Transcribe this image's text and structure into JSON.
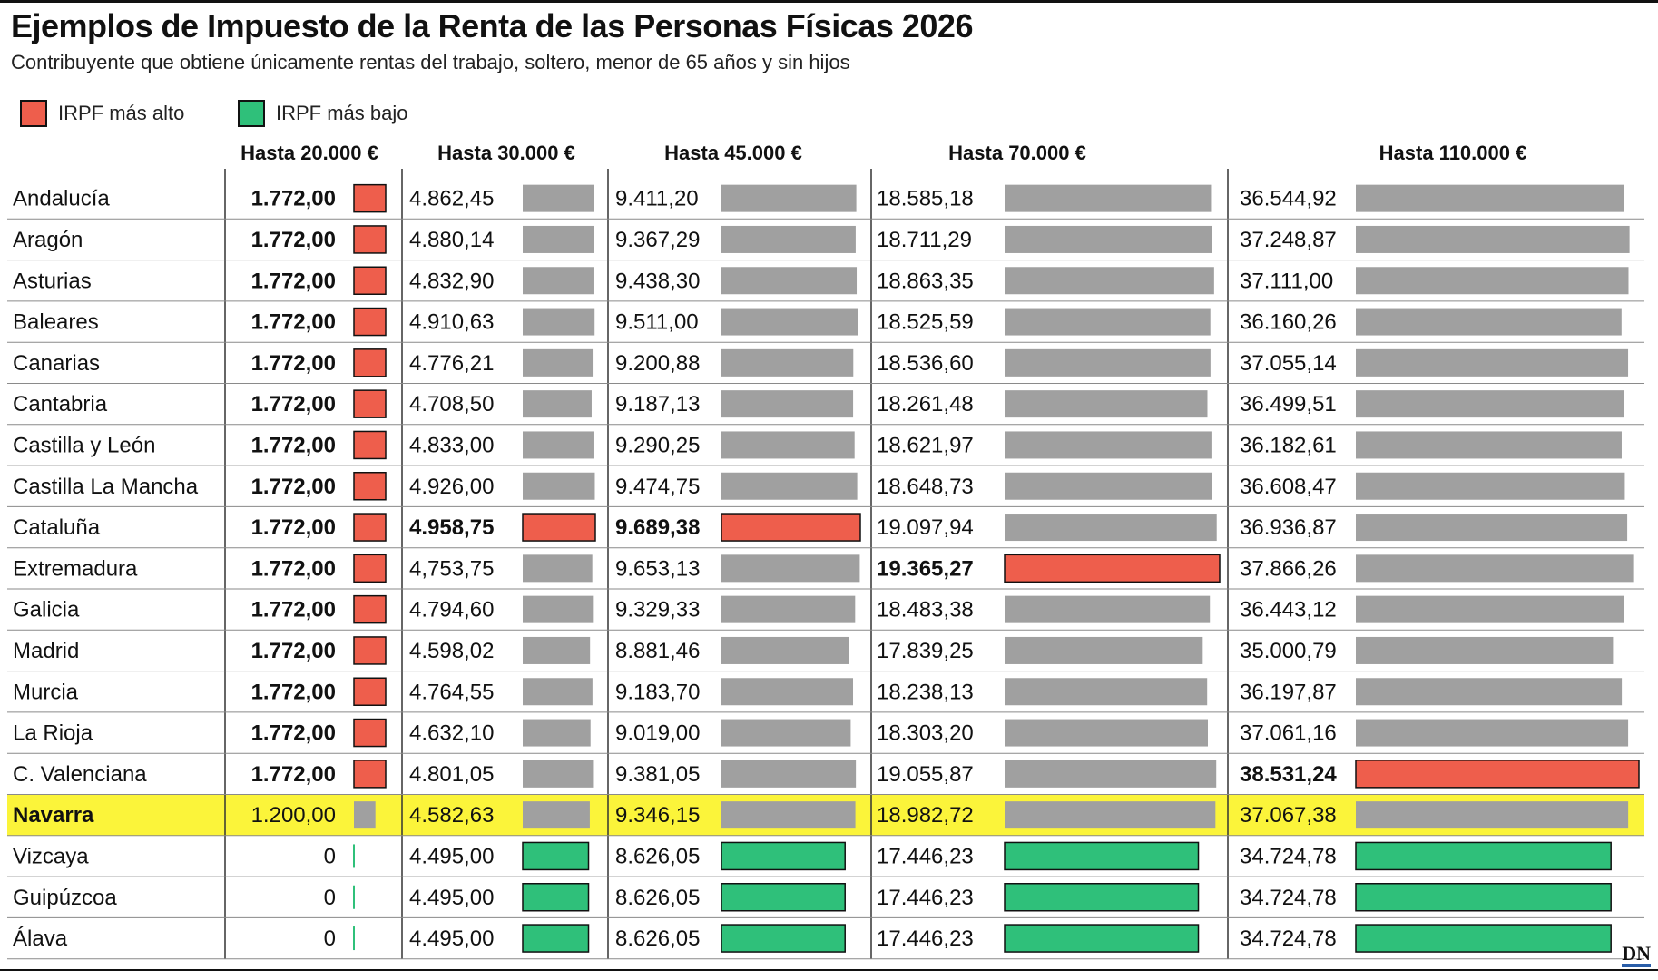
{
  "title": "Ejemplos de Impuesto de la Renta de las Personas Físicas 2026",
  "subtitle": "Contribuyente que obtiene únicamente rentas del trabajo, soltero, menor de 65 años y sin hijos",
  "legend": [
    {
      "label": "IRPF más alto",
      "color": "#ee5e4c"
    },
    {
      "label": "IRPF más bajo",
      "color": "#2fc07a"
    }
  ],
  "brand": "DN",
  "colors": {
    "high": "#ee5e4c",
    "low": "#2fc07a",
    "neutral": "#a0a0a0",
    "highlight_row": "#fbf43a"
  },
  "chart_data": {
    "type": "table",
    "columns": [
      "Hasta 20.000 €",
      "Hasta 30.000 €",
      "Hasta 45.000 €",
      "Hasta 70.000 €",
      "Hasta 110.000 €"
    ],
    "highlight_row": "Navarra",
    "rows": [
      {
        "region": "Andalucía",
        "values": [
          "1.772,00",
          "4.862,45",
          "9.411,20",
          "18.585,18",
          "36.544,92"
        ],
        "status": [
          "high",
          "neutral",
          "neutral",
          "neutral",
          "neutral"
        ]
      },
      {
        "region": "Aragón",
        "values": [
          "1.772,00",
          "4.880,14",
          "9.367,29",
          "18.711,29",
          "37.248,87"
        ],
        "status": [
          "high",
          "neutral",
          "neutral",
          "neutral",
          "neutral"
        ]
      },
      {
        "region": "Asturias",
        "values": [
          "1.772,00",
          "4.832,90",
          "9.438,30",
          "18.863,35",
          "37.111,00"
        ],
        "status": [
          "high",
          "neutral",
          "neutral",
          "neutral",
          "neutral"
        ]
      },
      {
        "region": "Baleares",
        "values": [
          "1.772,00",
          "4.910,63",
          "9.511,00",
          "18.525,59",
          "36.160,26"
        ],
        "status": [
          "high",
          "neutral",
          "neutral",
          "neutral",
          "neutral"
        ]
      },
      {
        "region": "Canarias",
        "values": [
          "1.772,00",
          "4.776,21",
          "9.200,88",
          "18.536,60",
          "37.055,14"
        ],
        "status": [
          "high",
          "neutral",
          "neutral",
          "neutral",
          "neutral"
        ]
      },
      {
        "region": "Cantabria",
        "values": [
          "1.772,00",
          "4.708,50",
          "9.187,13",
          "18.261,48",
          "36.499,51"
        ],
        "status": [
          "high",
          "neutral",
          "neutral",
          "neutral",
          "neutral"
        ]
      },
      {
        "region": "Castilla y León",
        "values": [
          "1.772,00",
          "4.833,00",
          "9.290,25",
          "18.621,97",
          "36.182,61"
        ],
        "status": [
          "high",
          "neutral",
          "neutral",
          "neutral",
          "neutral"
        ]
      },
      {
        "region": "Castilla La Mancha",
        "values": [
          "1.772,00",
          "4.926,00",
          "9.474,75",
          "18.648,73",
          "36.608,47"
        ],
        "status": [
          "high",
          "neutral",
          "neutral",
          "neutral",
          "neutral"
        ]
      },
      {
        "region": "Cataluña",
        "values": [
          "1.772,00",
          "4.958,75",
          "9.689,38",
          "19.097,94",
          "36.936,87"
        ],
        "status": [
          "high",
          "high",
          "high",
          "neutral",
          "neutral"
        ]
      },
      {
        "region": "Extremadura",
        "values": [
          "1.772,00",
          "4,753,75",
          "9.653,13",
          "19.365,27",
          "37.866,26"
        ],
        "status": [
          "high",
          "neutral",
          "neutral",
          "high",
          "neutral"
        ]
      },
      {
        "region": "Galicia",
        "values": [
          "1.772,00",
          "4.794,60",
          "9.329,33",
          "18.483,38",
          "36.443,12"
        ],
        "status": [
          "high",
          "neutral",
          "neutral",
          "neutral",
          "neutral"
        ]
      },
      {
        "region": "Madrid",
        "values": [
          "1.772,00",
          "4.598,02",
          "8.881,46",
          "17.839,25",
          "35.000,79"
        ],
        "status": [
          "high",
          "neutral",
          "neutral",
          "neutral",
          "neutral"
        ]
      },
      {
        "region": "Murcia",
        "values": [
          "1.772,00",
          "4.764,55",
          "9.183,70",
          "18.238,13",
          "36.197,87"
        ],
        "status": [
          "high",
          "neutral",
          "neutral",
          "neutral",
          "neutral"
        ]
      },
      {
        "region": "La Rioja",
        "values": [
          "1.772,00",
          "4.632,10",
          "9.019,00",
          "18.303,20",
          "37.061,16"
        ],
        "status": [
          "high",
          "neutral",
          "neutral",
          "neutral",
          "neutral"
        ]
      },
      {
        "region": "C. Valenciana",
        "values": [
          "1.772,00",
          "4.801,05",
          "9.381,05",
          "19.055,87",
          "38.531,24"
        ],
        "status": [
          "high",
          "neutral",
          "neutral",
          "neutral",
          "high"
        ]
      },
      {
        "region": "Navarra",
        "values": [
          "1.200,00",
          "4.582,63",
          "9.346,15",
          "18.982,72",
          "37.067,38"
        ],
        "status": [
          "neutral",
          "neutral",
          "neutral",
          "neutral",
          "neutral"
        ]
      },
      {
        "region": "Vizcaya",
        "values": [
          "0",
          "4.495,00",
          "8.626,05",
          "17.446,23",
          "34.724,78"
        ],
        "status": [
          "low",
          "low",
          "low",
          "low",
          "low"
        ]
      },
      {
        "region": "Guipúzcoa",
        "values": [
          "0",
          "4.495,00",
          "8.626,05",
          "17.446,23",
          "34.724,78"
        ],
        "status": [
          "low",
          "low",
          "low",
          "low",
          "low"
        ]
      },
      {
        "region": "Álava",
        "values": [
          "0",
          "4.495,00",
          "8.626,05",
          "17.446,23",
          "34.724,78"
        ],
        "status": [
          "low",
          "low",
          "low",
          "low",
          "low"
        ]
      }
    ]
  }
}
